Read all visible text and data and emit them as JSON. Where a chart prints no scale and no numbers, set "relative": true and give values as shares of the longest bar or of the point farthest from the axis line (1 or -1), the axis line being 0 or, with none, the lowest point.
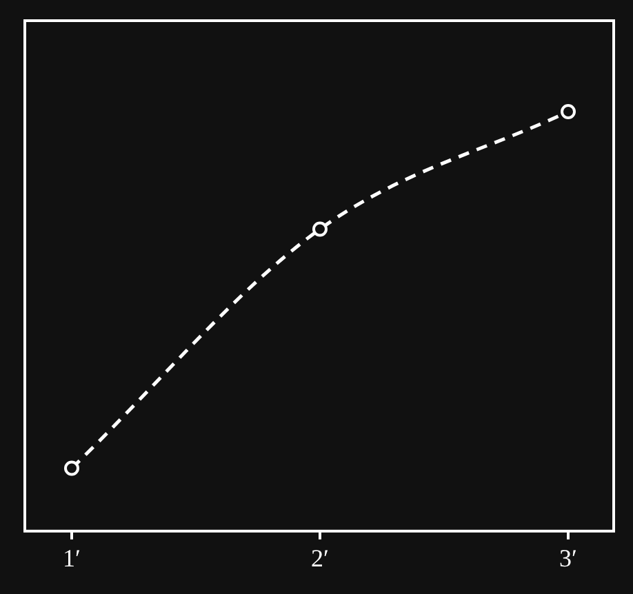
{
  "chart_data": {
    "type": "line",
    "relative": true,
    "categories": [
      "1′",
      "2′",
      "3′"
    ],
    "series": [
      {
        "color": "#ffffff",
        "values": [
          0.15,
          0.72,
          1
        ]
      }
    ],
    "marker": "circle",
    "line_style": "dashed",
    "grid": false,
    "legend": false
  }
}
